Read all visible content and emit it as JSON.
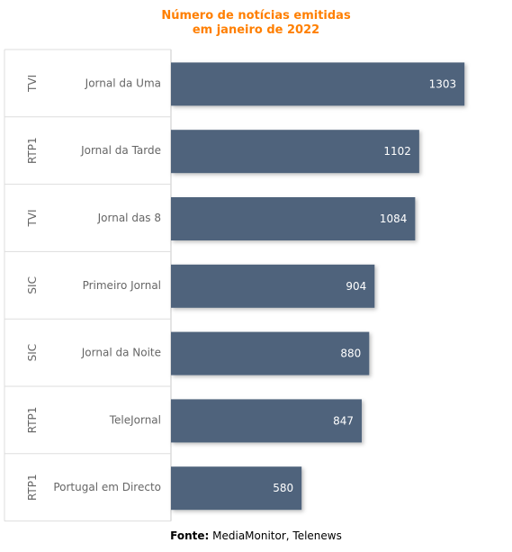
{
  "chart_data": {
    "type": "bar",
    "orientation": "horizontal",
    "title_lines": [
      "Número de notícias emitidas",
      "em janeiro de 2022"
    ],
    "groups": [
      "TVI",
      "RTP1",
      "TVI",
      "SIC",
      "SIC",
      "RTP1",
      "RTP1"
    ],
    "categories": [
      "Jornal da Uma",
      "Jornal da Tarde",
      "Jornal das 8",
      "Primeiro Jornal",
      "Jornal da Noite",
      "TeleJornal",
      "Portugal em Directo"
    ],
    "values": [
      1303,
      1102,
      1084,
      904,
      880,
      847,
      580
    ],
    "xlim": [
      0,
      1430
    ],
    "grid": false,
    "bar_color": "#4f647c",
    "title_color": "#ff7f00"
  },
  "source": {
    "label": "Fonte:",
    "text": "MediaMonitor, Telenews"
  }
}
